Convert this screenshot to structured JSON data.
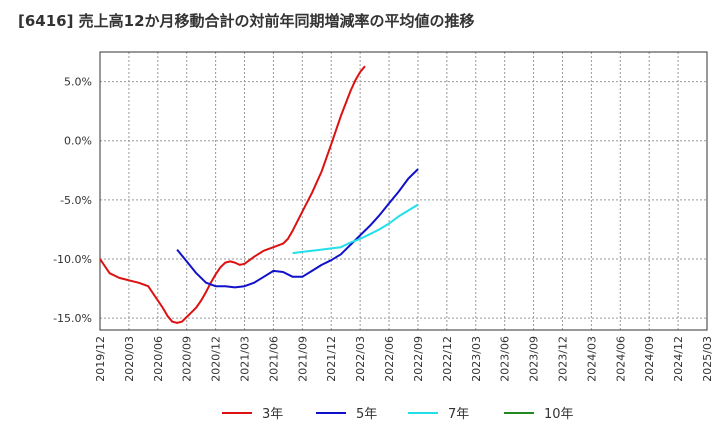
{
  "chart_data": {
    "type": "line",
    "title": "[6416]  売上高12か月移動合計の対前年同期増減率の平均値の推移",
    "xlabel": "",
    "ylabel": "",
    "ylim": [
      -16,
      7.5
    ],
    "yticks": [
      5.0,
      0.0,
      -5.0,
      -10.0,
      -15.0
    ],
    "ytick_labels": [
      "5.0%",
      "0.0%",
      "-5.0%",
      "-10.0%",
      "-15.0%"
    ],
    "xtick_labels": [
      "2019/12",
      "2020/03",
      "2020/06",
      "2020/09",
      "2020/12",
      "2021/03",
      "2021/06",
      "2021/09",
      "2021/12",
      "2022/03",
      "2022/06",
      "2022/09",
      "2022/12",
      "2023/03",
      "2023/06",
      "2023/09",
      "2023/12",
      "2024/03",
      "2024/06",
      "2024/09",
      "2024/12",
      "2025/03"
    ],
    "grid": true,
    "legend_position": "bottom",
    "series": [
      {
        "name": "3年",
        "color": "#dd1111",
        "points": [
          [
            0,
            -10.0
          ],
          [
            1,
            -11.2
          ],
          [
            2,
            -11.6
          ],
          [
            3,
            -11.8
          ],
          [
            4,
            -12.0
          ],
          [
            5,
            -12.3
          ],
          [
            6,
            -13.5
          ],
          [
            6.5,
            -14.1
          ],
          [
            7,
            -14.8
          ],
          [
            7.5,
            -15.3
          ],
          [
            8,
            -15.4
          ],
          [
            8.5,
            -15.3
          ],
          [
            9,
            -14.9
          ],
          [
            9.5,
            -14.5
          ],
          [
            10,
            -14.1
          ],
          [
            10.5,
            -13.5
          ],
          [
            11,
            -12.8
          ],
          [
            11.5,
            -12.0
          ],
          [
            12,
            -11.3
          ],
          [
            12.5,
            -10.7
          ],
          [
            13,
            -10.3
          ],
          [
            13.5,
            -10.2
          ],
          [
            14,
            -10.3
          ],
          [
            14.5,
            -10.5
          ],
          [
            15,
            -10.4
          ],
          [
            16,
            -9.8
          ],
          [
            17,
            -9.3
          ],
          [
            18,
            -9.0
          ],
          [
            19,
            -8.7
          ],
          [
            19.5,
            -8.3
          ],
          [
            20,
            -7.6
          ],
          [
            21,
            -6.0
          ],
          [
            22,
            -4.4
          ],
          [
            23,
            -2.6
          ],
          [
            24,
            -0.3
          ],
          [
            25,
            2.1
          ],
          [
            26,
            4.2
          ],
          [
            26.5,
            5.1
          ],
          [
            27,
            5.8
          ],
          [
            27.5,
            6.3
          ]
        ]
      },
      {
        "name": "5年",
        "color": "#1111cc",
        "points": [
          [
            8,
            -9.2
          ],
          [
            9,
            -10.2
          ],
          [
            10,
            -11.2
          ],
          [
            11,
            -12.0
          ],
          [
            12,
            -12.3
          ],
          [
            13,
            -12.3
          ],
          [
            14,
            -12.4
          ],
          [
            15,
            -12.3
          ],
          [
            16,
            -12.0
          ],
          [
            17,
            -11.5
          ],
          [
            18,
            -11.0
          ],
          [
            19,
            -11.1
          ],
          [
            20,
            -11.5
          ],
          [
            21,
            -11.5
          ],
          [
            22,
            -11.0
          ],
          [
            23,
            -10.5
          ],
          [
            24,
            -10.1
          ],
          [
            25,
            -9.6
          ],
          [
            26,
            -8.8
          ],
          [
            27,
            -8.0
          ],
          [
            28,
            -7.2
          ],
          [
            29,
            -6.3
          ],
          [
            30,
            -5.3
          ],
          [
            31,
            -4.3
          ],
          [
            32,
            -3.2
          ],
          [
            33,
            -2.4
          ]
        ]
      },
      {
        "name": "7年",
        "color": "#22e0e8",
        "points": [
          [
            20,
            -9.5
          ],
          [
            21,
            -9.4
          ],
          [
            22,
            -9.3
          ],
          [
            23,
            -9.2
          ],
          [
            24,
            -9.1
          ],
          [
            25,
            -9.0
          ],
          [
            26,
            -8.6
          ],
          [
            27,
            -8.3
          ],
          [
            28,
            -7.9
          ],
          [
            29,
            -7.5
          ],
          [
            30,
            -7.0
          ],
          [
            31,
            -6.4
          ],
          [
            32,
            -5.9
          ],
          [
            33,
            -5.4
          ]
        ]
      },
      {
        "name": "10年",
        "color": "#228822",
        "points": []
      }
    ]
  }
}
